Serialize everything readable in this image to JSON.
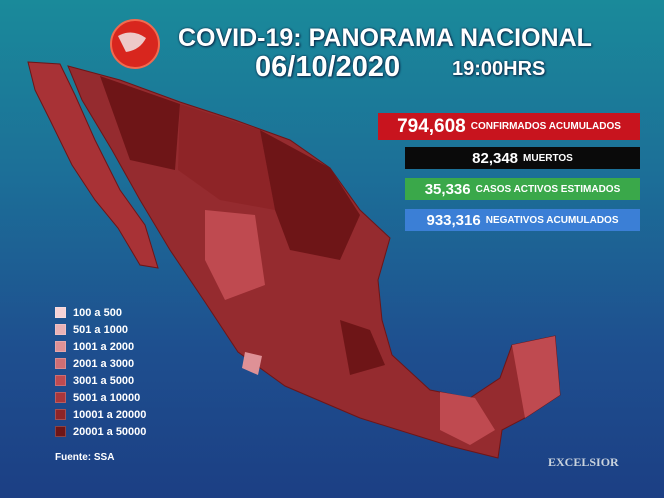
{
  "header": {
    "title": "COVID-19: PANORAMA NACIONAL",
    "date": "06/10/2020",
    "time": "19:00HRS"
  },
  "stats": [
    {
      "number": "794,608",
      "label": "CONFIRMADOS ACUMULADOS",
      "color": "#c8141e"
    },
    {
      "number": "82,348",
      "label": "MUERTOS",
      "color": "#0a0a0a"
    },
    {
      "number": "35,336",
      "label": "CASOS ACTIVOS ESTIMADOS",
      "color": "#3aa84a"
    },
    {
      "number": "933,316",
      "label": "NEGATIVOS ACUMULADOS",
      "color": "#3b7fd6"
    }
  ],
  "legend": [
    {
      "label": "100 a 500",
      "color": "#f6d3d6"
    },
    {
      "label": "501 a 1000",
      "color": "#eab2b6"
    },
    {
      "label": "1001 a 2000",
      "color": "#de9196"
    },
    {
      "label": "2001 a 3000",
      "color": "#cf6e74"
    },
    {
      "label": "3001 a 5000",
      "color": "#bf4a50"
    },
    {
      "label": "5001 a 10000",
      "color": "#a9363b"
    },
    {
      "label": "10001 a 20000",
      "color": "#8e2427"
    },
    {
      "label": "20001 a 50000",
      "color": "#6e1517"
    }
  ],
  "source": "Fuente: SSA",
  "brand": "EXCELSIOR"
}
